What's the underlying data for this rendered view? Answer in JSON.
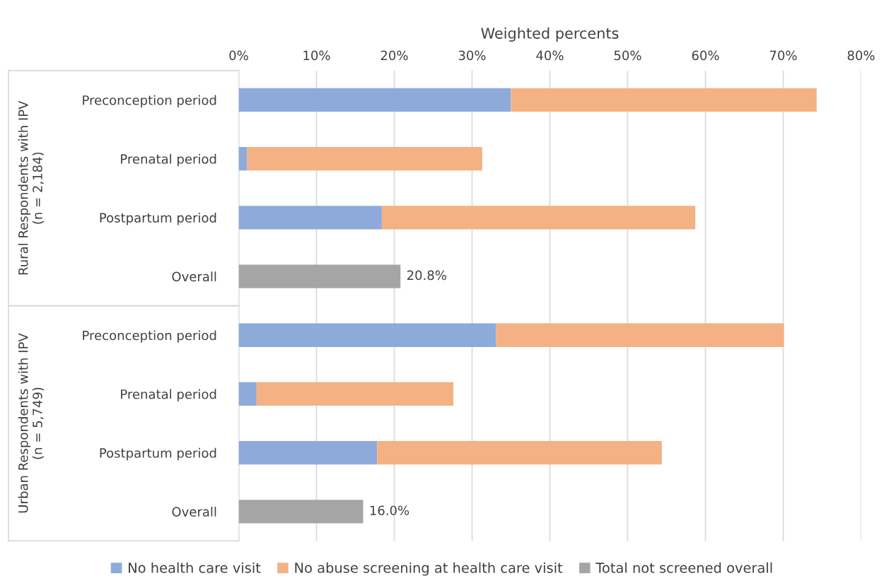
{
  "chart_data": {
    "type": "bar",
    "orientation": "horizontal",
    "stacked": true,
    "xlabel": "Weighted percents",
    "categories": [
      "Preconception period",
      "Prenatal period",
      "Postpartum period",
      "Overall",
      "Preconception period",
      "Prenatal period",
      "Postpartum period",
      "Overall"
    ],
    "annotations": [
      "Rural Respondents with IPV\n(n = 2,184)",
      "Urban Respondents with IPV\n(n = 5,749)"
    ],
    "series": [
      {
        "name": "No health care visit",
        "color": "#8eaadb",
        "values": [
          35.0,
          1.1,
          18.4,
          null,
          33.1,
          2.3,
          17.8,
          null
        ]
      },
      {
        "name": "No abuse screening at health care visit",
        "color": "#f4b183",
        "values": [
          39.3,
          30.2,
          40.3,
          null,
          37.0,
          25.3,
          36.6,
          null
        ]
      },
      {
        "name": "Total not screened overall",
        "color": "#a5a5a5",
        "values": [
          null,
          null,
          null,
          20.8,
          null,
          null,
          null,
          16.0
        ],
        "value_labels": [
          null,
          null,
          null,
          "20.8%",
          null,
          null,
          null,
          "16.0%"
        ]
      }
    ],
    "xlim": [
      0,
      80
    ],
    "xticks": [
      {
        "value": 0,
        "label": "0%"
      },
      {
        "value": 10,
        "label": "10%"
      },
      {
        "value": 20,
        "label": "20%"
      },
      {
        "value": 30,
        "label": "30%"
      },
      {
        "value": 40,
        "label": "40%"
      },
      {
        "value": 50,
        "label": "50%"
      },
      {
        "value": 60,
        "label": "60%"
      },
      {
        "value": 70,
        "label": "70%"
      },
      {
        "value": 80,
        "label": "80%"
      }
    ],
    "grid": "x",
    "legend": "bottom"
  }
}
